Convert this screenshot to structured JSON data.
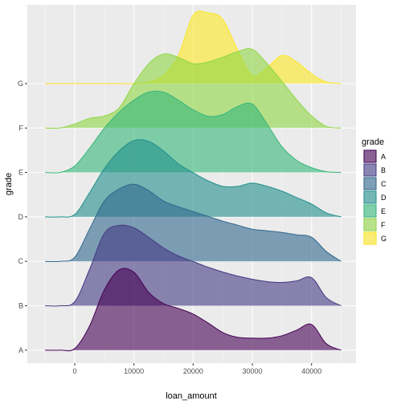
{
  "chart_data": {
    "type": "ridgeline",
    "xlabel": "loan_amount",
    "ylabel": "grade",
    "xlim": [
      -8000,
      47500
    ],
    "x_ticks": [
      0,
      10000,
      20000,
      30000,
      40000
    ],
    "x_tick_labels": [
      "0",
      "10000",
      "20000",
      "30000",
      "40000"
    ],
    "categories": [
      "A",
      "B",
      "C",
      "D",
      "E",
      "F",
      "G"
    ],
    "legend": {
      "title": "grade",
      "position": "right",
      "labels": [
        "A",
        "B",
        "C",
        "D",
        "E",
        "F",
        "G"
      ]
    },
    "grid": true,
    "density_x": [
      -5000,
      -2500,
      0,
      2500,
      5000,
      7500,
      10000,
      12500,
      15000,
      17500,
      20000,
      22500,
      25000,
      27500,
      30000,
      32500,
      35000,
      37500,
      40000,
      42500,
      45000
    ],
    "series": [
      {
        "name": "A",
        "color": "#440154",
        "density": [
          0.0,
          0.0,
          0.02,
          0.3,
          0.75,
          1.0,
          0.97,
          0.72,
          0.58,
          0.52,
          0.45,
          0.34,
          0.22,
          0.16,
          0.15,
          0.15,
          0.18,
          0.25,
          0.32,
          0.08,
          0.0
        ]
      },
      {
        "name": "B",
        "color": "#443A83",
        "density": [
          0.0,
          0.0,
          0.05,
          0.45,
          0.9,
          1.0,
          0.97,
          0.85,
          0.72,
          0.62,
          0.55,
          0.48,
          0.42,
          0.37,
          0.33,
          0.3,
          0.29,
          0.31,
          0.35,
          0.1,
          0.0
        ]
      },
      {
        "name": "C",
        "color": "#31688E",
        "density": [
          0.0,
          0.0,
          0.05,
          0.4,
          0.75,
          0.9,
          0.96,
          0.88,
          0.75,
          0.68,
          0.62,
          0.56,
          0.5,
          0.45,
          0.4,
          0.38,
          0.36,
          0.33,
          0.3,
          0.12,
          0.0
        ]
      },
      {
        "name": "D",
        "color": "#21908C",
        "density": [
          0.0,
          0.0,
          0.03,
          0.3,
          0.6,
          0.82,
          0.95,
          0.94,
          0.82,
          0.66,
          0.55,
          0.45,
          0.38,
          0.38,
          0.42,
          0.38,
          0.32,
          0.24,
          0.16,
          0.05,
          0.0
        ]
      },
      {
        "name": "E",
        "color": "#35B779",
        "density": [
          0.0,
          0.0,
          0.08,
          0.3,
          0.55,
          0.75,
          0.9,
          1.0,
          1.0,
          0.9,
          0.78,
          0.7,
          0.72,
          0.82,
          0.85,
          0.6,
          0.32,
          0.15,
          0.06,
          0.01,
          0.0
        ]
      },
      {
        "name": "F",
        "color": "#8FD744",
        "density": [
          0.0,
          0.0,
          0.05,
          0.12,
          0.15,
          0.25,
          0.55,
          0.8,
          0.92,
          0.88,
          0.8,
          0.82,
          0.88,
          0.95,
          0.98,
          0.8,
          0.58,
          0.35,
          0.15,
          0.02,
          0.0
        ]
      },
      {
        "name": "G",
        "color": "#FDE725",
        "density": [
          0.0,
          0.0,
          0.0,
          0.0,
          0.0,
          0.0,
          0.0,
          0.02,
          0.1,
          0.35,
          0.85,
          0.88,
          0.8,
          0.42,
          0.1,
          0.2,
          0.35,
          0.27,
          0.12,
          0.02,
          0.0
        ]
      }
    ]
  }
}
